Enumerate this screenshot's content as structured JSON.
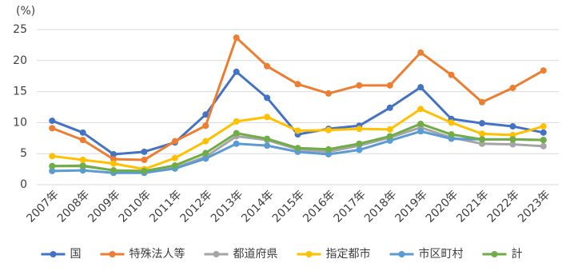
{
  "chart_data": {
    "type": "line",
    "y_label": "(%)",
    "categories": [
      "2007年",
      "2008年",
      "2009年",
      "2010年",
      "2011年",
      "2012年",
      "2013年",
      "2014年",
      "2015年",
      "2016年",
      "2017年",
      "2018年",
      "2019年",
      "2020年",
      "2021年",
      "2022年",
      "2023年"
    ],
    "series": [
      {
        "name": "国",
        "color": "#4472c4",
        "values": [
          10.3,
          8.4,
          4.9,
          5.3,
          6.8,
          11.3,
          18.2,
          14.0,
          8.1,
          9.0,
          9.5,
          12.4,
          15.7,
          10.6,
          9.9,
          9.4,
          8.4
        ]
      },
      {
        "name": "特殊法人等",
        "color": "#ed7d31",
        "values": [
          9.1,
          7.2,
          4.1,
          4.0,
          7.0,
          9.5,
          23.7,
          19.1,
          16.2,
          14.7,
          16.0,
          16.0,
          21.3,
          17.7,
          13.3,
          15.6,
          18.4
        ]
      },
      {
        "name": "都道府県",
        "color": "#a5a5a5",
        "values": [
          3.0,
          3.1,
          2.3,
          2.0,
          2.7,
          4.5,
          7.8,
          7.2,
          5.7,
          5.3,
          6.3,
          7.6,
          9.2,
          7.6,
          6.6,
          6.5,
          6.2
        ]
      },
      {
        "name": "指定都市",
        "color": "#ffc000",
        "values": [
          4.6,
          4.0,
          3.4,
          2.5,
          4.3,
          7.0,
          10.2,
          10.9,
          8.7,
          8.8,
          9.0,
          8.9,
          12.2,
          10.0,
          8.2,
          8.0,
          9.4
        ]
      },
      {
        "name": "市区町村",
        "color": "#5b9bd5",
        "values": [
          2.2,
          2.3,
          1.9,
          1.9,
          2.6,
          4.2,
          6.6,
          6.3,
          5.3,
          4.9,
          5.6,
          7.1,
          8.6,
          7.4,
          7.3,
          7.3,
          7.2
        ]
      },
      {
        "name": "計",
        "color": "#70ad47",
        "values": [
          3.0,
          3.0,
          2.3,
          2.2,
          3.1,
          5.1,
          8.3,
          7.4,
          5.9,
          5.7,
          6.6,
          7.8,
          9.8,
          8.1,
          7.3,
          7.3,
          7.2
        ]
      }
    ],
    "ylim": [
      0,
      25
    ],
    "yticks": [
      0,
      5,
      10,
      15,
      20,
      25
    ],
    "grid": true
  }
}
